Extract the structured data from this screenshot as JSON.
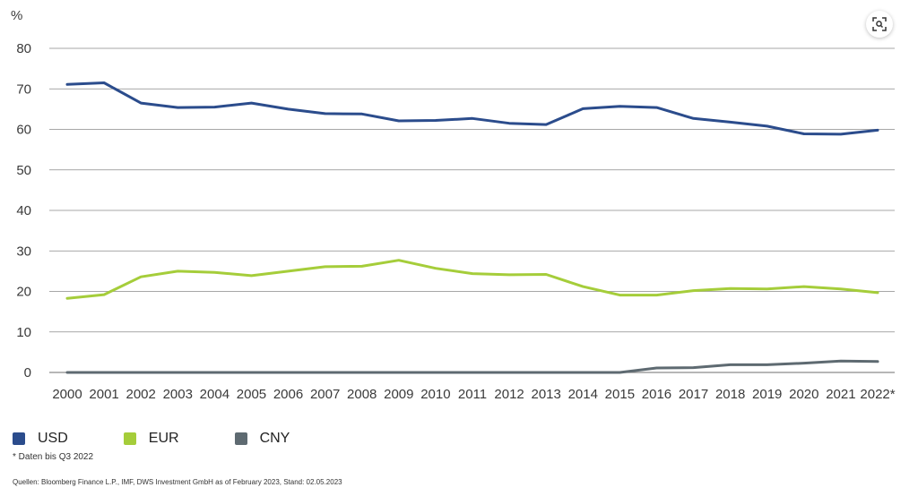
{
  "colors": {
    "usd": "#2b4c8c",
    "eur": "#a5cd3a",
    "cny": "#5e6a71",
    "grid": "#8a8a8a",
    "text": "#3a3a3a"
  },
  "legend": {
    "usd_label": "USD",
    "eur_label": "EUR",
    "cny_label": "CNY"
  },
  "footnote": "* Daten bis Q3 2022",
  "source": "Quellen: Bloomberg Finance L.P., IMF, DWS Investment GmbH as of February 2023, Stand: 02.05.2023",
  "zoom_icon": "zoom-icon",
  "chart_data": {
    "type": "line",
    "ylabel": "%",
    "ylim": [
      0,
      80
    ],
    "yticks": [
      "0",
      "10",
      "20",
      "30",
      "40",
      "50",
      "60",
      "70",
      "80"
    ],
    "grid": true,
    "legend_position": "bottom-left",
    "categories": [
      "2000",
      "2001",
      "2002",
      "2003",
      "2004",
      "2005",
      "2006",
      "2007",
      "2008",
      "2009",
      "2010",
      "2011",
      "2012",
      "2013",
      "2014",
      "2015",
      "2016",
      "2017",
      "2018",
      "2019",
      "2020",
      "2021",
      "2022*"
    ],
    "series": [
      {
        "name": "USD",
        "color": "#2b4c8c",
        "values": [
          71.1,
          71.5,
          66.5,
          65.4,
          65.5,
          66.5,
          65.0,
          63.9,
          63.8,
          62.1,
          62.2,
          62.7,
          61.5,
          61.2,
          65.1,
          65.7,
          65.4,
          62.7,
          61.8,
          60.8,
          58.9,
          58.8,
          59.8
        ]
      },
      {
        "name": "EUR",
        "color": "#a5cd3a",
        "values": [
          18.3,
          19.2,
          23.6,
          25.0,
          24.7,
          23.9,
          25.0,
          26.1,
          26.2,
          27.7,
          25.7,
          24.4,
          24.1,
          24.2,
          21.2,
          19.1,
          19.1,
          20.2,
          20.7,
          20.6,
          21.2,
          20.6,
          19.7
        ]
      },
      {
        "name": "CNY",
        "color": "#5e6a71",
        "values": [
          0,
          0,
          0,
          0,
          0,
          0,
          0,
          0,
          0,
          0,
          0,
          0,
          0,
          0,
          0,
          0,
          1.1,
          1.2,
          1.9,
          1.9,
          2.3,
          2.8,
          2.7
        ]
      }
    ]
  }
}
